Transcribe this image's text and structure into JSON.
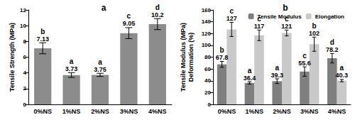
{
  "chart_data": [
    {
      "type": "bar",
      "title": "a",
      "y_label": "Tensile Strength (MPa)",
      "categories": [
        "0%NS",
        "1%NS",
        "2%NS",
        "3%NS",
        "4%NS"
      ],
      "series": [
        {
          "name": "Tensile Strength",
          "color": "#8c8c8c",
          "values": [
            7.13,
            3.73,
            3.75,
            9.05,
            10.2
          ],
          "errors": [
            0.7,
            0.3,
            0.2,
            0.7,
            0.7
          ],
          "letters": [
            "b",
            "a",
            "a",
            "c",
            "d"
          ]
        }
      ],
      "ylim": [
        0,
        12
      ],
      "yticks": [
        0,
        2,
        4,
        6,
        8,
        10,
        12
      ],
      "grid": false,
      "data_labels": true
    },
    {
      "type": "bar",
      "title": "b",
      "y_label": "Tensile Modulus (MPa)\nDeformation (%)",
      "categories": [
        "0%NS",
        "1%NS",
        "2%NS",
        "3%NS",
        "4%NS"
      ],
      "series": [
        {
          "name": "Tensile Modulus",
          "color": "#7f7f7f",
          "values": [
            67.8,
            36.4,
            39.3,
            55.6,
            78.2
          ],
          "errors": [
            5,
            2,
            4,
            8,
            8
          ],
          "letters": [
            "b",
            "a",
            "a",
            "c",
            "d"
          ]
        },
        {
          "name": "Elongation",
          "color": "#c9c9c9",
          "values": [
            127,
            117,
            121,
            102,
            40.3
          ],
          "errors": [
            12,
            9,
            5,
            12,
            2
          ],
          "letters": [
            "c",
            "c",
            "c",
            "b",
            "a"
          ]
        }
      ],
      "ylim": [
        0,
        160
      ],
      "yticks": [
        0,
        20,
        40,
        60,
        80,
        100,
        120,
        140,
        160
      ],
      "grid": false,
      "data_labels": true,
      "legend": "top-right"
    }
  ]
}
